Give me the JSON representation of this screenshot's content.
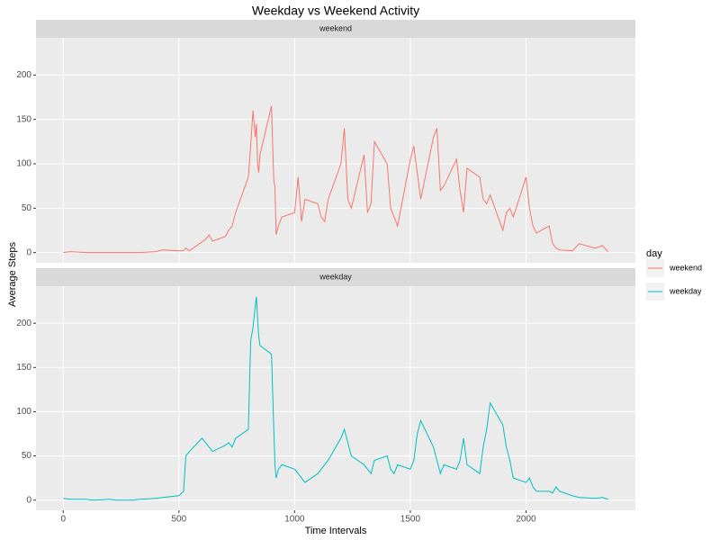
{
  "chart_data": {
    "type": "line",
    "title": "Weekday vs Weekend Activity",
    "x_label": "Time Intervals",
    "y_label": "Average Steps",
    "legend_title": "day",
    "grid": true,
    "legend_position": "right",
    "xlim": [
      -117.75,
      2472.75
    ],
    "xticks": [
      0,
      500,
      1000,
      1500,
      2000
    ],
    "ylim": [
      -11.5,
      241.9
    ],
    "yticks": [
      0,
      50,
      100,
      150,
      200
    ],
    "x": [
      0,
      30,
      100,
      130,
      200,
      230,
      300,
      330,
      400,
      430,
      500,
      520,
      530,
      545,
      600,
      615,
      630,
      645,
      700,
      715,
      730,
      745,
      800,
      810,
      820,
      830,
      835,
      840,
      845,
      850,
      900,
      910,
      915,
      920,
      930,
      945,
      1000,
      1015,
      1030,
      1045,
      1100,
      1115,
      1130,
      1145,
      1200,
      1215,
      1230,
      1245,
      1300,
      1315,
      1330,
      1345,
      1400,
      1415,
      1430,
      1445,
      1500,
      1515,
      1530,
      1545,
      1600,
      1615,
      1630,
      1645,
      1700,
      1715,
      1730,
      1745,
      1800,
      1815,
      1830,
      1845,
      1900,
      1915,
      1930,
      1945,
      2000,
      2015,
      2030,
      2045,
      2100,
      2115,
      2130,
      2145,
      2200,
      2230,
      2300,
      2330,
      2355
    ],
    "series": [
      {
        "name": "weekend",
        "color": "#F8766D",
        "values": [
          0,
          1,
          0,
          0,
          0,
          0,
          0,
          0,
          1,
          3,
          2,
          2,
          5,
          2,
          12,
          15,
          20,
          13,
          18,
          25,
          30,
          45,
          85,
          120,
          160,
          130,
          145,
          100,
          90,
          110,
          165,
          80,
          75,
          20,
          30,
          40,
          45,
          85,
          35,
          60,
          55,
          40,
          35,
          60,
          100,
          140,
          60,
          50,
          110,
          45,
          55,
          125,
          100,
          50,
          40,
          30,
          105,
          120,
          90,
          60,
          130,
          140,
          70,
          75,
          105,
          70,
          45,
          95,
          85,
          60,
          55,
          65,
          25,
          45,
          50,
          40,
          85,
          50,
          30,
          22,
          30,
          10,
          5,
          3,
          2,
          10,
          5,
          8,
          1
        ]
      },
      {
        "name": "weekday",
        "color": "#00BFC4",
        "values": [
          2,
          1,
          1,
          0,
          1,
          0,
          0,
          1,
          2,
          3,
          5,
          10,
          50,
          55,
          70,
          65,
          60,
          55,
          62,
          65,
          60,
          70,
          80,
          180,
          195,
          220,
          230,
          205,
          185,
          175,
          165,
          80,
          40,
          25,
          35,
          40,
          35,
          30,
          25,
          20,
          30,
          35,
          40,
          45,
          70,
          80,
          65,
          50,
          40,
          35,
          30,
          45,
          50,
          35,
          30,
          40,
          35,
          45,
          75,
          90,
          60,
          45,
          30,
          40,
          35,
          45,
          70,
          40,
          30,
          60,
          80,
          110,
          85,
          60,
          45,
          25,
          20,
          25,
          15,
          10,
          10,
          8,
          15,
          10,
          5,
          3,
          2,
          3,
          1
        ]
      }
    ]
  }
}
